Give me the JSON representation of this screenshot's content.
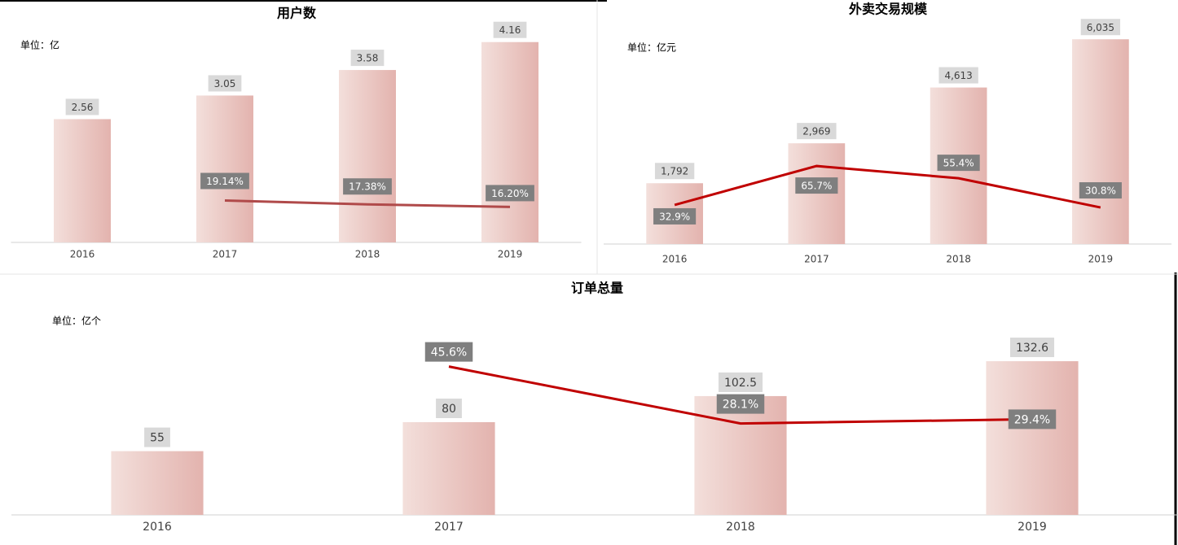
{
  "chart_data": [
    {
      "type": "bar",
      "title": "用户数",
      "unit": "单位：亿",
      "categories": [
        "2016",
        "2017",
        "2018",
        "2019"
      ],
      "series": [
        {
          "type": "bar",
          "color": "#e3b3ae",
          "values": [
            2.56,
            3.05,
            3.58,
            4.16
          ]
        },
        {
          "type": "line",
          "axis": "y2",
          "color": "#b04a4a",
          "values": [
            null,
            19.14,
            17.38,
            16.2
          ],
          "value_labels": [
            null,
            "19.14%",
            "17.38%",
            "16.20%"
          ]
        }
      ],
      "ylim": [
        0,
        5
      ],
      "y2lim": [
        0,
        110
      ]
    },
    {
      "type": "bar",
      "title": "外卖交易规模",
      "unit": "单位：亿元",
      "categories": [
        "2016",
        "2017",
        "2018",
        "2019"
      ],
      "series": [
        {
          "type": "bar",
          "color": "#e3b3ae",
          "values": [
            1792,
            2969,
            4613,
            6035
          ],
          "value_labels": [
            "1,792",
            "2,969",
            "4,613",
            "6,035"
          ]
        },
        {
          "type": "line",
          "axis": "y2",
          "color": "#c00000",
          "values": [
            32.9,
            65.7,
            55.4,
            30.8
          ],
          "value_labels": [
            "32.9%",
            "65.7%",
            "55.4%",
            "30.8%"
          ]
        }
      ],
      "ylim": [
        0,
        7000
      ],
      "y2lim": [
        0,
        200
      ]
    },
    {
      "type": "bar",
      "title": "订单总量",
      "unit": "单位：亿个",
      "categories": [
        "2016",
        "2017",
        "2018",
        "2019"
      ],
      "series": [
        {
          "type": "bar",
          "color": "#e3b3ae",
          "values": [
            55,
            80,
            102.5,
            132.6
          ]
        },
        {
          "type": "line",
          "axis": "y2",
          "color": "#c00000",
          "values": [
            null,
            45.6,
            28.1,
            29.4
          ],
          "value_labels": [
            null,
            "45.6%",
            "28.1%",
            "29.4%"
          ]
        }
      ],
      "ylim": [
        0,
        160
      ],
      "y2lim": [
        0,
        57
      ]
    }
  ]
}
